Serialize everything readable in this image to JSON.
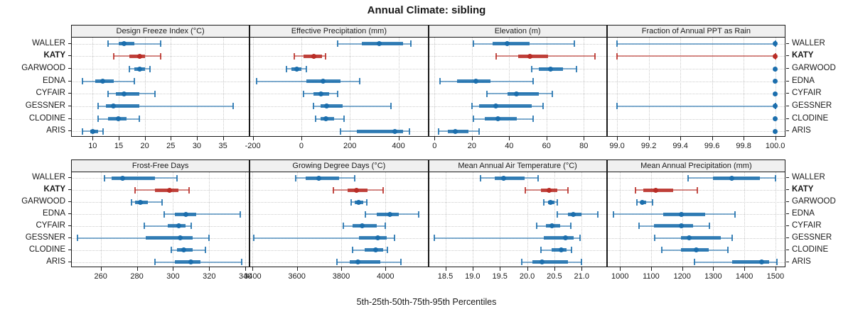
{
  "title": "Annual Climate: sibling",
  "caption": "5th-25th-50th-75th-95th Percentiles",
  "colors": {
    "series_default": "#1b6ead",
    "series_highlight": "#b92d26",
    "grid": "#c9c9c9",
    "strip_bg": "#f0f0f0",
    "border": "#1a1a1a"
  },
  "stations": [
    {
      "label": "WALLER",
      "highlight": false
    },
    {
      "label": "KATY",
      "highlight": true
    },
    {
      "label": "GARWOOD",
      "highlight": false
    },
    {
      "label": "EDNA",
      "highlight": false
    },
    {
      "label": "CYFAIR",
      "highlight": false
    },
    {
      "label": "GESSNER",
      "highlight": false
    },
    {
      "label": "CLODINE",
      "highlight": false
    },
    {
      "label": "ARIS",
      "highlight": false
    }
  ],
  "chart_data": {
    "type": "dotplot-percentiles",
    "note": "each series row = [p5, p25, p50, p75, p95]; rows ordered as stations top-to-bottom",
    "legend_position": "none",
    "grid": true,
    "panels": [
      {
        "row": 0,
        "title": "Design Freeze Index (°C)",
        "xmin": 6,
        "xmax": 40,
        "tick_values": [
          10,
          15,
          20,
          25,
          30,
          35
        ],
        "tick_labels": [
          "10",
          "15",
          "20",
          "25",
          "30",
          "35"
        ],
        "series": [
          [
            13,
            15,
            16,
            18,
            23
          ],
          [
            14,
            17,
            19,
            20,
            23
          ],
          [
            17,
            18,
            19,
            20,
            21
          ],
          [
            8,
            10.5,
            12,
            14,
            18
          ],
          [
            13,
            14.5,
            16,
            19,
            22
          ],
          [
            11,
            12.5,
            14,
            19,
            37
          ],
          [
            11,
            13,
            15,
            16.5,
            19
          ],
          [
            8,
            9.5,
            10,
            11,
            12
          ]
        ]
      },
      {
        "row": 0,
        "title": "Effective Precipitation (mm)",
        "xmin": -210,
        "xmax": 520,
        "tick_values": [
          -200,
          0,
          200,
          400
        ],
        "tick_labels": [
          "-200",
          "0",
          "200",
          "400"
        ],
        "series": [
          [
            150,
            250,
            320,
            420,
            450
          ],
          [
            -30,
            10,
            50,
            85,
            100
          ],
          [
            -60,
            -40,
            -20,
            0,
            20
          ],
          [
            -185,
            20,
            90,
            160,
            240
          ],
          [
            10,
            50,
            80,
            115,
            150
          ],
          [
            50,
            80,
            105,
            170,
            370
          ],
          [
            60,
            80,
            100,
            135,
            175
          ],
          [
            160,
            230,
            385,
            420,
            445
          ]
        ]
      },
      {
        "row": 0,
        "title": "Elevation (m)",
        "xmin": -3,
        "xmax": 92,
        "tick_values": [
          0,
          20,
          40,
          60,
          80
        ],
        "tick_labels": [
          "0",
          "20",
          "40",
          "60",
          "80"
        ],
        "series": [
          [
            21,
            31,
            39,
            51,
            75
          ],
          [
            33,
            45,
            51,
            61,
            86
          ],
          [
            52,
            56,
            62,
            69,
            76
          ],
          [
            3,
            12,
            22,
            30,
            53
          ],
          [
            28,
            39,
            44,
            56,
            63
          ],
          [
            20,
            24,
            33,
            52,
            58
          ],
          [
            21,
            27,
            34,
            44,
            53
          ],
          [
            2,
            7,
            11,
            18,
            24
          ]
        ]
      },
      {
        "row": 0,
        "title": "Fraction of Annual PPT as Rain",
        "xmin": 98.94,
        "xmax": 100.06,
        "tick_values": [
          99.0,
          99.2,
          99.4,
          99.6,
          99.8,
          100.0
        ],
        "tick_labels": [
          "99.0",
          "99.2",
          "99.4",
          "99.6",
          "99.8",
          "100.0"
        ],
        "series": [
          [
            99.0,
            100,
            100,
            100,
            100
          ],
          [
            99.0,
            100,
            100,
            100,
            100
          ],
          [
            100,
            100,
            100,
            100,
            100
          ],
          [
            100,
            100,
            100,
            100,
            100
          ],
          [
            100,
            100,
            100,
            100,
            100
          ],
          [
            99.0,
            100,
            100,
            100,
            100
          ],
          [
            100,
            100,
            100,
            100,
            100
          ],
          [
            100,
            100,
            100,
            100,
            100
          ]
        ]
      },
      {
        "row": 1,
        "title": "Frost-Free Days",
        "xmin": 244,
        "xmax": 342,
        "tick_values": [
          260,
          280,
          300,
          320,
          340
        ],
        "tick_labels": [
          "260",
          "280",
          "300",
          "320",
          "340"
        ],
        "series": [
          [
            262,
            266,
            272,
            290,
            302
          ],
          [
            279,
            290,
            298,
            303,
            309
          ],
          [
            277,
            279,
            282,
            286,
            294
          ],
          [
            295,
            301,
            307,
            313,
            337
          ],
          [
            284,
            297,
            303,
            307,
            310
          ],
          [
            247,
            285,
            304,
            311,
            320
          ],
          [
            299,
            302,
            306,
            311,
            318
          ],
          [
            290,
            301,
            310,
            315,
            338
          ]
        ]
      },
      {
        "row": 1,
        "title": "Growing Degree Days (°C)",
        "xmin": 3390,
        "xmax": 4190,
        "tick_values": [
          3400,
          3600,
          3800,
          4000
        ],
        "tick_labels": [
          "3400",
          "3600",
          "3800",
          "4000"
        ],
        "series": [
          [
            3595,
            3640,
            3700,
            3790,
            3860
          ],
          [
            3765,
            3830,
            3870,
            3920,
            3990
          ],
          [
            3845,
            3860,
            3880,
            3900,
            3915
          ],
          [
            3910,
            3960,
            4020,
            4060,
            4150
          ],
          [
            3810,
            3850,
            3895,
            3960,
            4000
          ],
          [
            3405,
            3880,
            3965,
            4005,
            4040
          ],
          [
            3850,
            3905,
            3955,
            3990,
            4010
          ],
          [
            3780,
            3840,
            3875,
            3975,
            4070
          ]
        ]
      },
      {
        "row": 1,
        "title": "Mean Annual Air Temperature (°C)",
        "xmin": 18.2,
        "xmax": 21.45,
        "tick_values": [
          18.5,
          19.0,
          19.5,
          20.0,
          20.5,
          21.0
        ],
        "tick_labels": [
          "18.5",
          "19.0",
          "19.5",
          "20.0",
          "20.5",
          "21.0"
        ],
        "series": [
          [
            19.15,
            19.4,
            19.57,
            19.95,
            20.2
          ],
          [
            19.97,
            20.25,
            20.4,
            20.55,
            20.75
          ],
          [
            20.3,
            20.38,
            20.43,
            20.5,
            20.55
          ],
          [
            20.55,
            20.75,
            20.85,
            21.0,
            21.3
          ],
          [
            20.17,
            20.35,
            20.45,
            20.6,
            20.8
          ],
          [
            18.3,
            20.3,
            20.7,
            20.85,
            20.97
          ],
          [
            20.25,
            20.45,
            20.62,
            20.72,
            20.82
          ],
          [
            19.9,
            20.1,
            20.27,
            20.75,
            21.0
          ]
        ]
      },
      {
        "row": 1,
        "title": "Mean Annual Precipitation (mm)",
        "xmin": 960,
        "xmax": 1530,
        "tick_values": [
          1000,
          1100,
          1200,
          1300,
          1400,
          1500
        ],
        "tick_labels": [
          "1000",
          "1100",
          "1200",
          "1300",
          "1400",
          "1500"
        ],
        "series": [
          [
            1220,
            1300,
            1360,
            1450,
            1500
          ],
          [
            1050,
            1075,
            1115,
            1170,
            1248
          ],
          [
            1055,
            1065,
            1072,
            1085,
            1105
          ],
          [
            980,
            1140,
            1198,
            1275,
            1370
          ],
          [
            1062,
            1110,
            1198,
            1235,
            1288
          ],
          [
            1112,
            1195,
            1222,
            1325,
            1360
          ],
          [
            1135,
            1195,
            1245,
            1285,
            1348
          ],
          [
            1240,
            1360,
            1455,
            1480,
            1505
          ]
        ]
      }
    ]
  }
}
